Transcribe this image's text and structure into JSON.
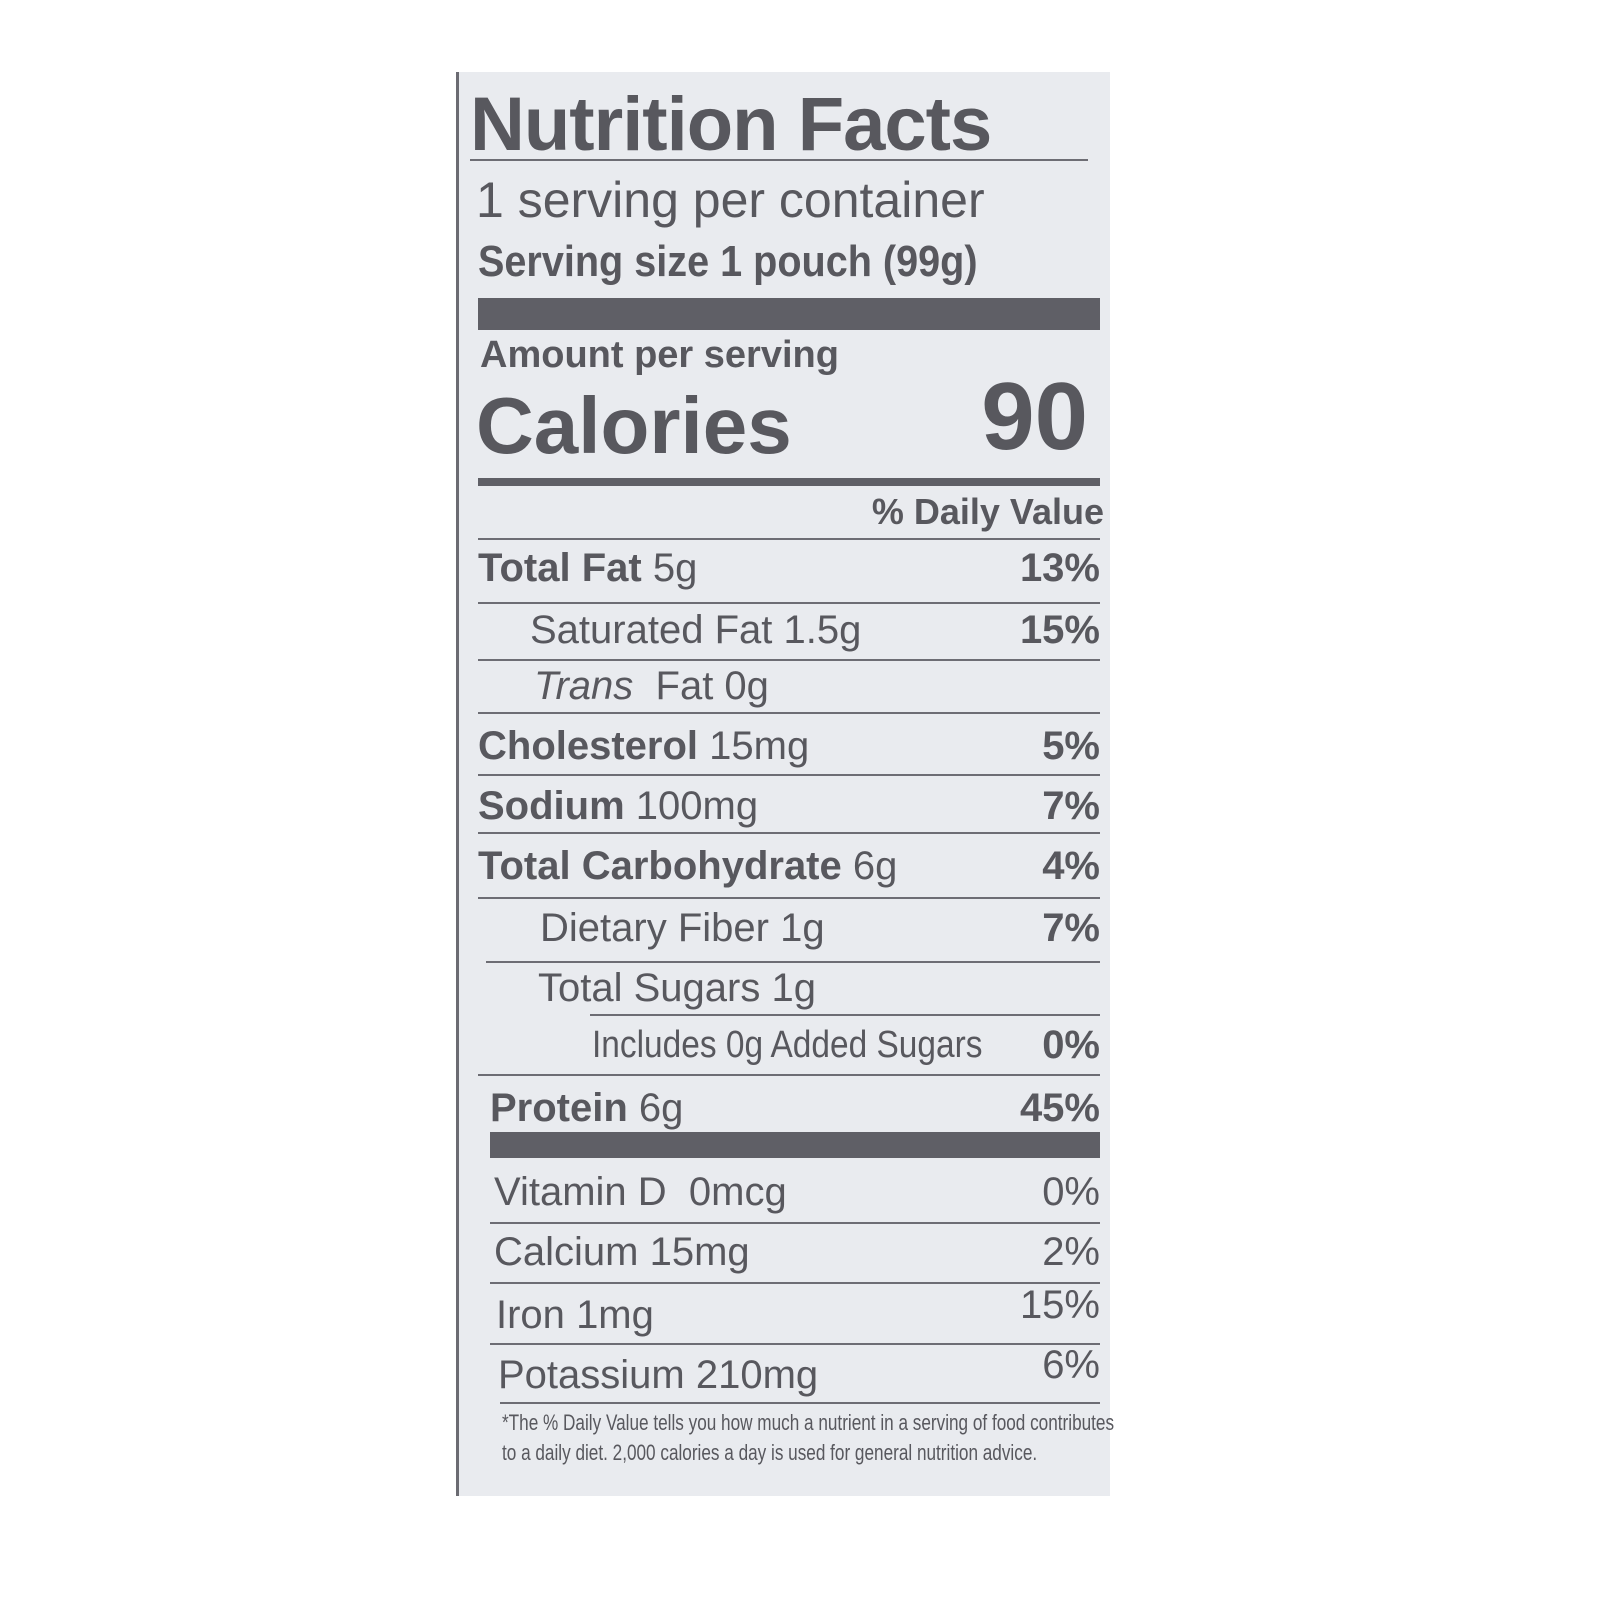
{
  "title": "Nutrition Facts",
  "servings_per_container": "1 serving per container",
  "serving_size": "Serving size 1 pouch (99g)",
  "amount_per_serving": "Amount per serving",
  "calories_label": "Calories",
  "calories_value": "90",
  "daily_value_header": "% Daily Value",
  "nutrients": [
    {
      "name": "Total Fat",
      "amount": "5g",
      "dv": "13%"
    },
    {
      "name": "Saturated Fat",
      "amount": "1.5g",
      "dv": "15%"
    },
    {
      "name": "Trans",
      "amount": "Fat 0g",
      "dv": ""
    },
    {
      "name": "Cholesterol",
      "amount": "15mg",
      "dv": "5%"
    },
    {
      "name": "Sodium",
      "amount": "100mg",
      "dv": "7%"
    },
    {
      "name": "Total Carbohydrate",
      "amount": "6g",
      "dv": "4%"
    },
    {
      "name": "Dietary Fiber",
      "amount": "1g",
      "dv": "7%"
    },
    {
      "name": "Total Sugars",
      "amount": "1g",
      "dv": ""
    },
    {
      "name": "Includes 0g Added Sugars",
      "amount": "",
      "dv": "0%"
    },
    {
      "name": "Protein",
      "amount": "6g",
      "dv": "45%"
    }
  ],
  "vitamins": [
    {
      "name": "Vitamin D",
      "amount": "0mcg",
      "dv": "0%"
    },
    {
      "name": "Calcium",
      "amount": "15mg",
      "dv": "2%"
    },
    {
      "name": "Iron",
      "amount": "1mg",
      "dv": "15%"
    },
    {
      "name": "Potassium",
      "amount": "210mg",
      "dv": "6%"
    }
  ],
  "footnote_line1": "*The % Daily Value tells you how much a nutrient in a serving of food contributes",
  "footnote_line2": "to a daily diet. 2,000 calories a day is used for general nutrition advice.",
  "colors": {
    "label_bg": "#e9ebef",
    "ink": "#58585e"
  }
}
